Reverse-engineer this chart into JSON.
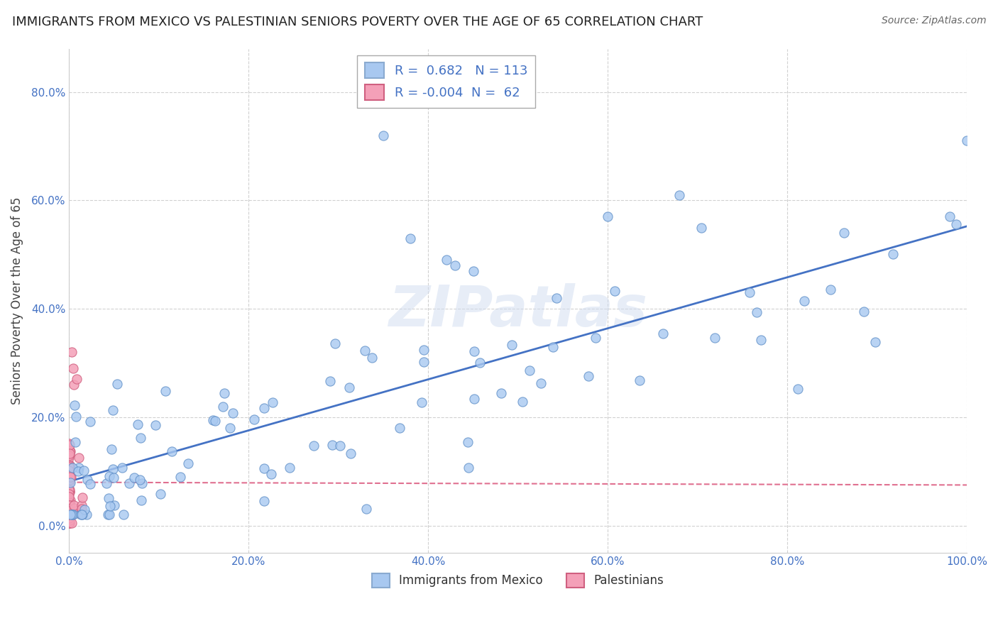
{
  "title": "IMMIGRANTS FROM MEXICO VS PALESTINIAN SENIORS POVERTY OVER THE AGE OF 65 CORRELATION CHART",
  "source": "Source: ZipAtlas.com",
  "ylabel": "Seniors Poverty Over the Age of 65",
  "legend_label_mexico": "Immigrants from Mexico",
  "legend_label_palestinian": "Palestinians",
  "color_mexico": "#A8C8F0",
  "color_palestinian": "#F4A0B8",
  "line_color_mexico": "#4472C4",
  "line_color_palestinian": "#E07090",
  "background_color": "#FFFFFF",
  "grid_color": "#CCCCCC",
  "watermark_text": "ZIPatlas",
  "r_mexico": 0.682,
  "n_mexico": 113,
  "r_palestinian": -0.004,
  "n_palestinian": 62,
  "xlim": [
    0.0,
    1.0
  ],
  "ylim": [
    -0.05,
    0.88
  ],
  "tick_color": "#4472C4",
  "title_fontsize": 13,
  "source_fontsize": 10,
  "legend_fontsize": 13,
  "ylabel_fontsize": 12
}
